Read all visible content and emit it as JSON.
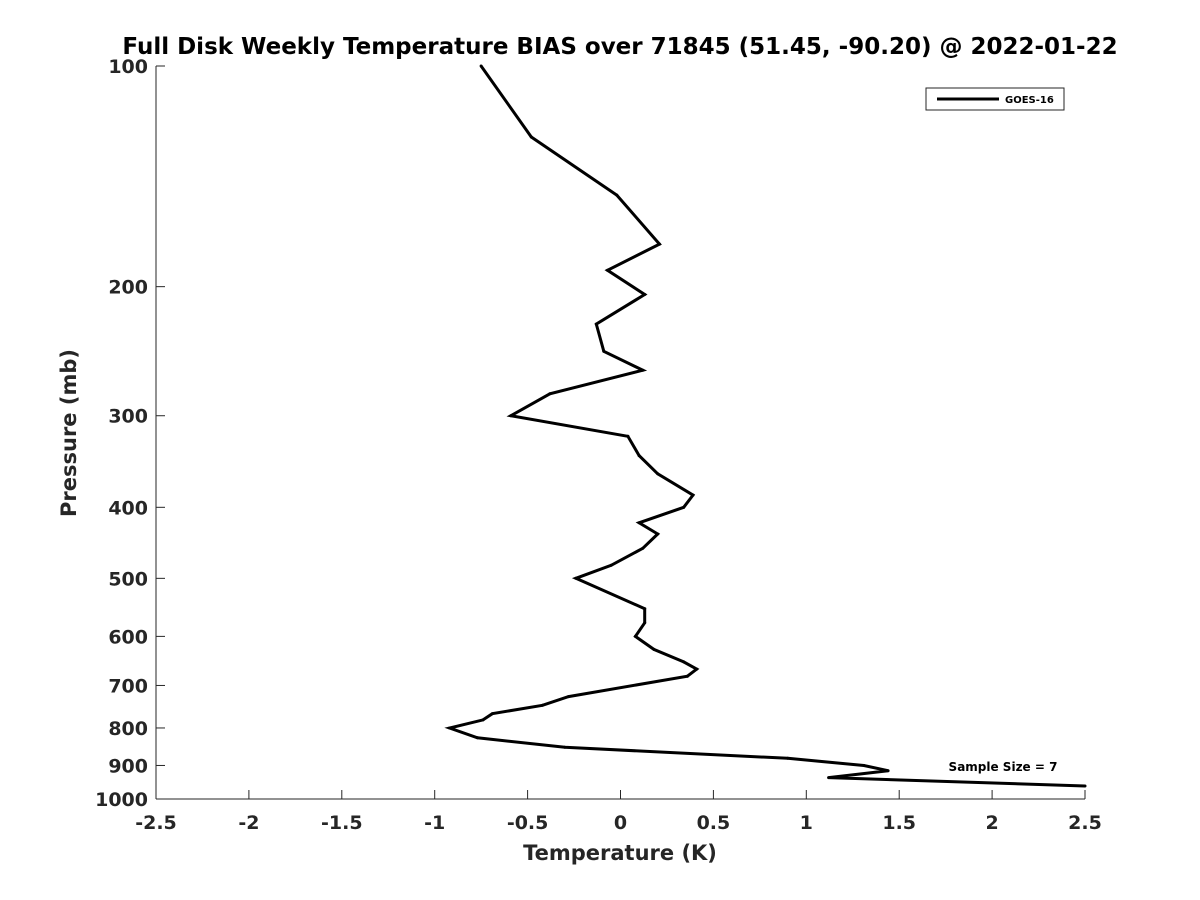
{
  "chart_data": {
    "type": "line",
    "title": "Full Disk Weekly Temperature BIAS over 71845 (51.45, -90.20) @ 2022-01-22",
    "xlabel": "Temperature (K)",
    "ylabel": "Pressure (mb)",
    "xlim": [
      -2.5,
      2.5
    ],
    "ylim": [
      100,
      1000
    ],
    "y_scale": "log",
    "y_reversed": true,
    "x_ticks": [
      "-2.5",
      "-2",
      "-1.5",
      "-1",
      "-0.5",
      "0",
      "0.5",
      "1",
      "1.5",
      "2",
      "2.5"
    ],
    "y_ticks": [
      "100",
      "200",
      "300",
      "400",
      "500",
      "600",
      "700",
      "800",
      "900",
      "1000"
    ],
    "grid": false,
    "legend_position": "top-right",
    "series": [
      {
        "name": "GOES-16",
        "color": "#000000",
        "points": [
          {
            "x": -0.75,
            "y": 100
          },
          {
            "x": -0.48,
            "y": 125
          },
          {
            "x": -0.02,
            "y": 150
          },
          {
            "x": 0.21,
            "y": 175
          },
          {
            "x": -0.07,
            "y": 190
          },
          {
            "x": 0.13,
            "y": 205
          },
          {
            "x": -0.13,
            "y": 225
          },
          {
            "x": -0.09,
            "y": 245
          },
          {
            "x": 0.12,
            "y": 260
          },
          {
            "x": -0.38,
            "y": 280
          },
          {
            "x": -0.59,
            "y": 300
          },
          {
            "x": 0.04,
            "y": 320
          },
          {
            "x": 0.1,
            "y": 340
          },
          {
            "x": 0.2,
            "y": 360
          },
          {
            "x": 0.39,
            "y": 385
          },
          {
            "x": 0.34,
            "y": 400
          },
          {
            "x": 0.1,
            "y": 420
          },
          {
            "x": 0.2,
            "y": 435
          },
          {
            "x": 0.12,
            "y": 455
          },
          {
            "x": -0.05,
            "y": 480
          },
          {
            "x": -0.24,
            "y": 500
          },
          {
            "x": 0.13,
            "y": 550
          },
          {
            "x": 0.13,
            "y": 575
          },
          {
            "x": 0.08,
            "y": 600
          },
          {
            "x": 0.18,
            "y": 625
          },
          {
            "x": 0.34,
            "y": 650
          },
          {
            "x": 0.41,
            "y": 665
          },
          {
            "x": 0.36,
            "y": 680
          },
          {
            "x": -0.28,
            "y": 725
          },
          {
            "x": -0.42,
            "y": 745
          },
          {
            "x": -0.69,
            "y": 765
          },
          {
            "x": -0.74,
            "y": 780
          },
          {
            "x": -0.92,
            "y": 800
          },
          {
            "x": -0.77,
            "y": 825
          },
          {
            "x": -0.3,
            "y": 850
          },
          {
            "x": 0.9,
            "y": 880
          },
          {
            "x": 1.31,
            "y": 900
          },
          {
            "x": 1.44,
            "y": 915
          },
          {
            "x": 1.12,
            "y": 935
          },
          {
            "x": 2.5,
            "y": 960
          }
        ]
      }
    ],
    "annotations": [
      {
        "text": "Sample Size = 7",
        "position": "bottom-right"
      }
    ]
  }
}
